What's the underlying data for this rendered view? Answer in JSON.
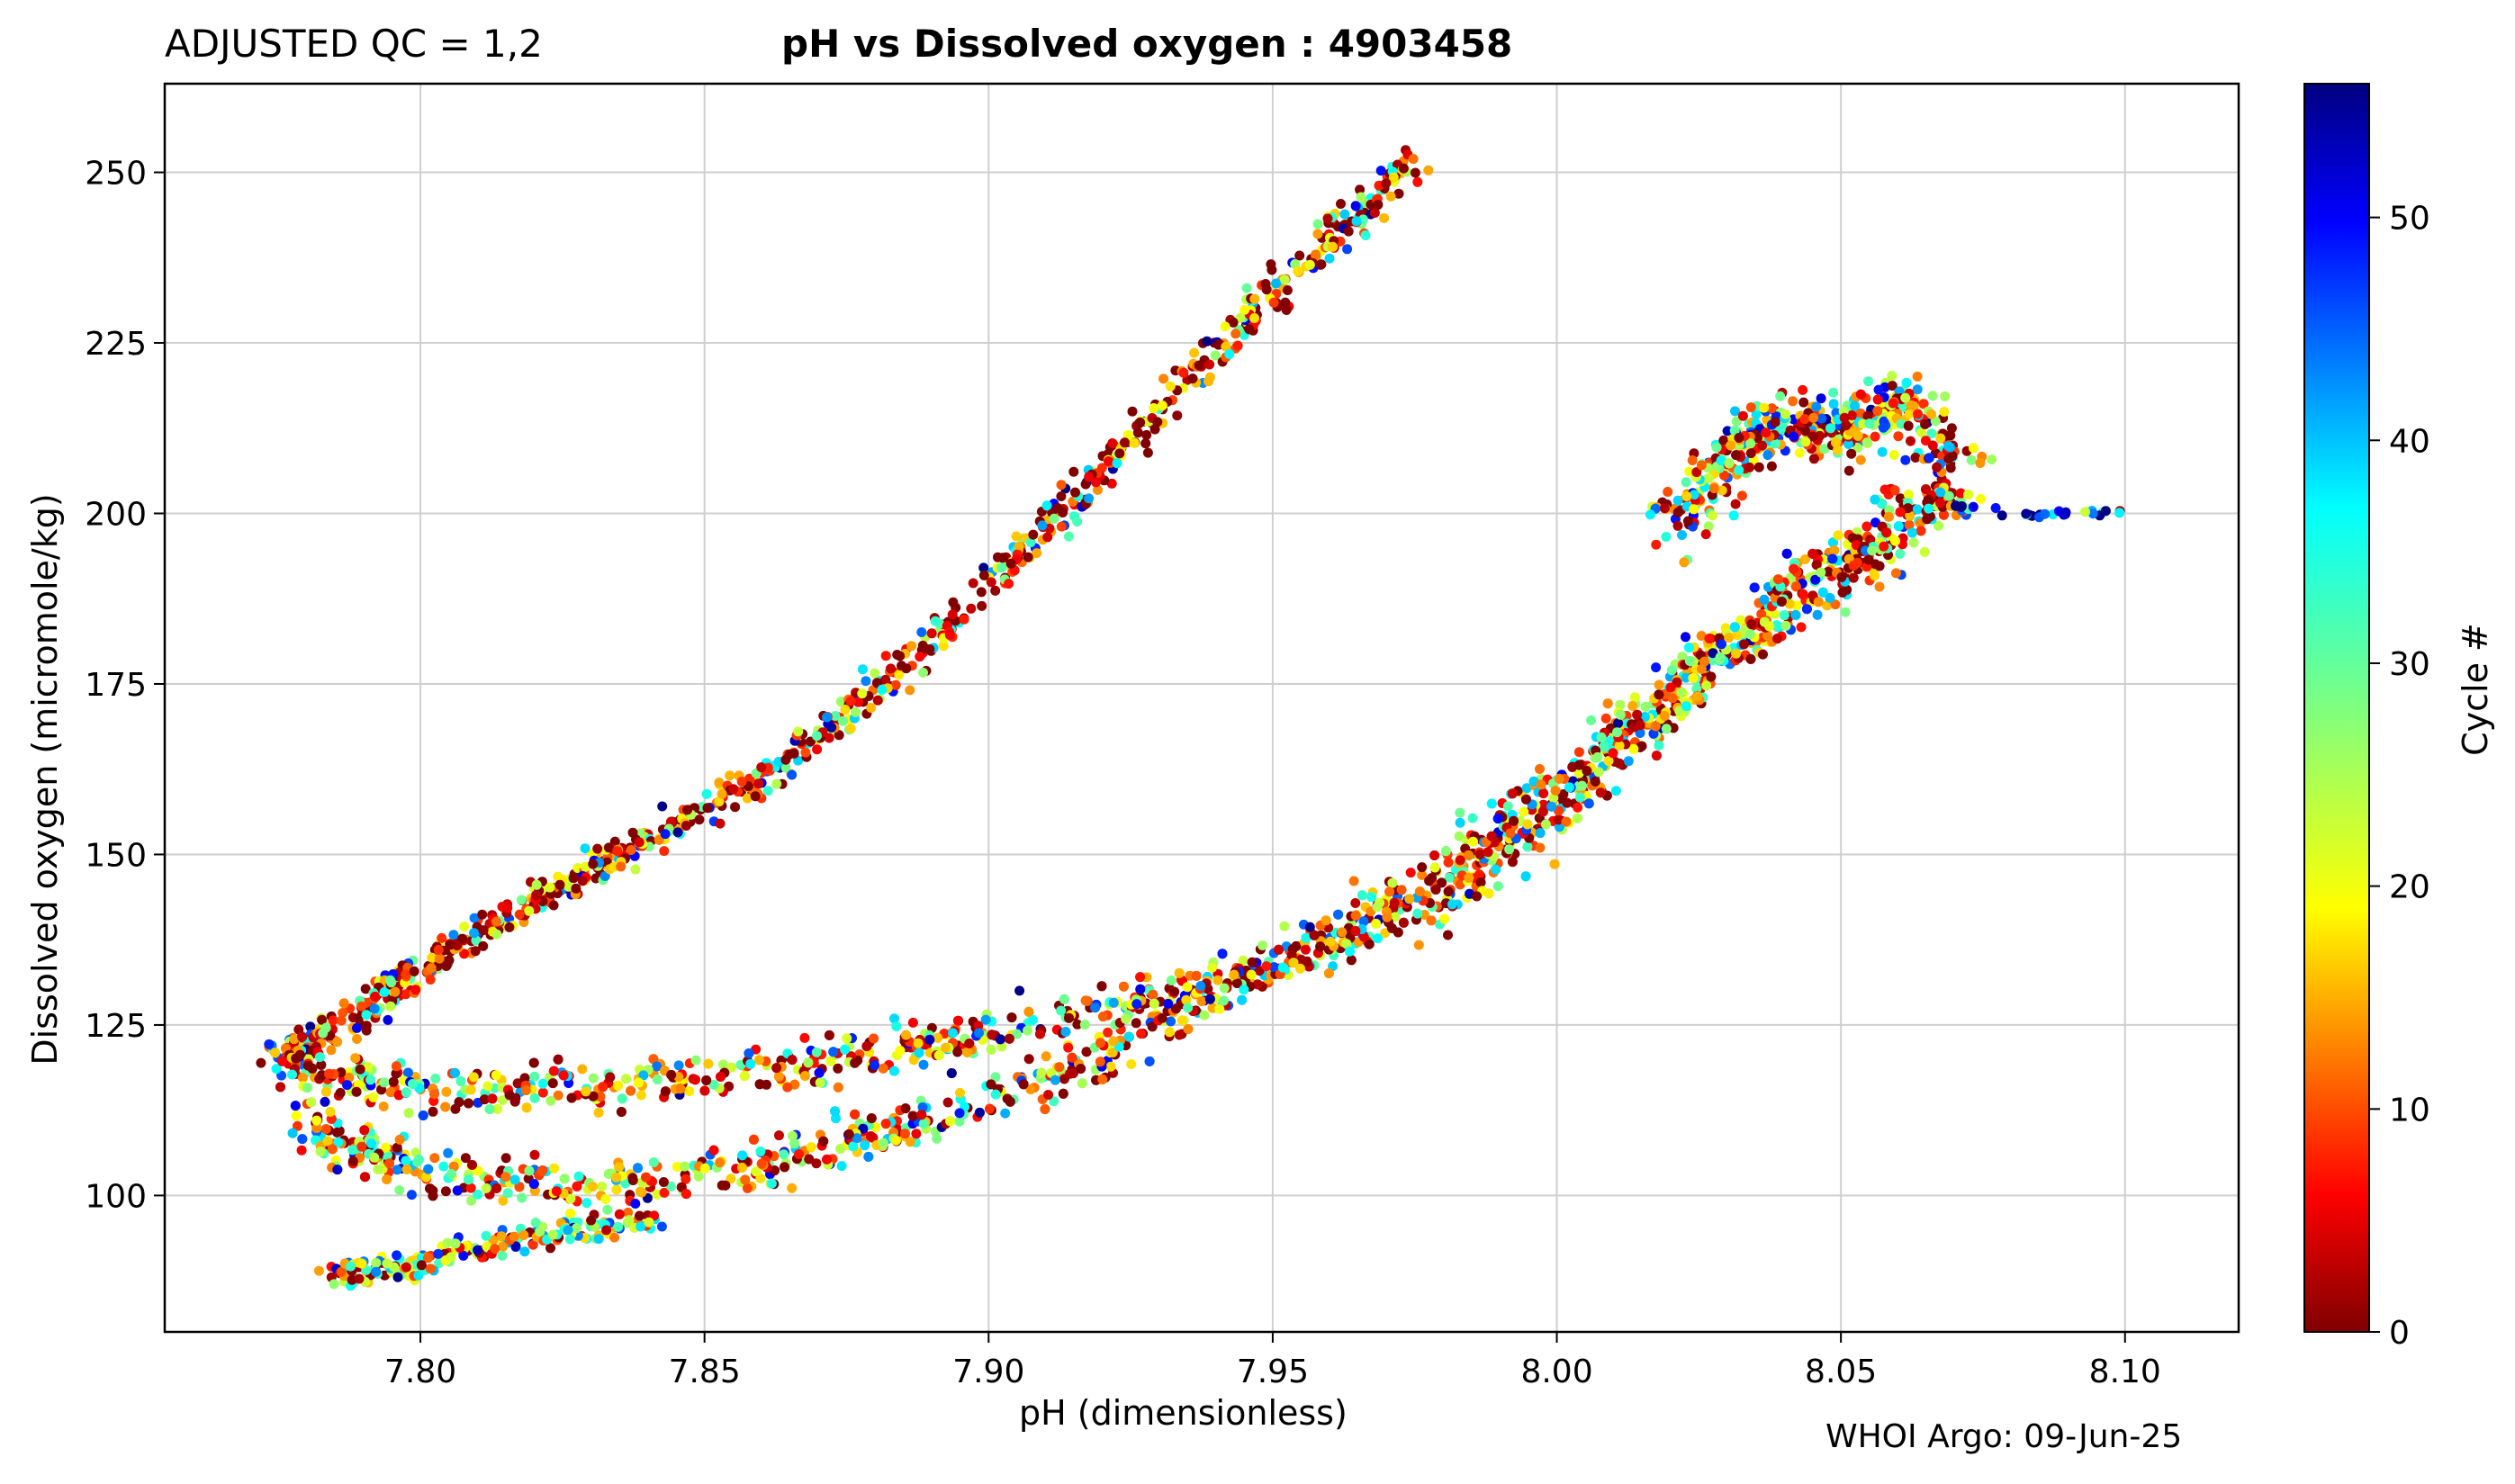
{
  "header": {
    "qc_label": "ADJUSTED QC = 1,2",
    "title": "pH vs Dissolved oxygen : 4903458"
  },
  "footer": {
    "credit": "WHOI Argo: 09-Jun-25"
  },
  "chart_data": {
    "type": "scatter",
    "title": "pH vs Dissolved oxygen : 4903458",
    "xlabel": "pH  (dimensionless)",
    "ylabel": "Dissolved oxygen  (micromole/kg)",
    "xlim": [
      7.755,
      8.12
    ],
    "ylim": [
      80,
      263
    ],
    "xticks": [
      7.8,
      7.85,
      7.9,
      7.95,
      8.0,
      8.05,
      8.1
    ],
    "xtick_labels": [
      "7.80",
      "7.85",
      "7.90",
      "7.95",
      "8.00",
      "8.05",
      "8.10"
    ],
    "yticks": [
      100,
      125,
      150,
      175,
      200,
      225,
      250
    ],
    "ytick_labels": [
      "100",
      "125",
      "150",
      "175",
      "200",
      "225",
      "250"
    ],
    "grid": true,
    "colormap": "jet",
    "colorbar": {
      "label": "Cycle #",
      "range": [
        0,
        56
      ],
      "ticks": [
        0,
        10,
        20,
        30,
        40,
        50
      ],
      "tick_labels": [
        "0",
        "10",
        "20",
        "30",
        "40",
        "50"
      ]
    },
    "series": [
      {
        "x": [
          7.775,
          7.79,
          7.8,
          7.82,
          7.84,
          7.86,
          7.88,
          7.9,
          7.92,
          7.94,
          7.96,
          7.975
        ],
        "y": [
          120,
          127,
          133,
          143,
          152,
          161,
          174,
          189,
          206,
          224,
          240,
          252
        ]
      },
      {
        "x": [
          7.775,
          7.8,
          7.83,
          7.86,
          7.89,
          7.92,
          7.95,
          7.98,
          8.0,
          8.02,
          8.04,
          8.06,
          8.07
        ],
        "y": [
          119,
          115,
          116,
          118,
          122,
          127,
          133,
          143,
          156,
          172,
          188,
          200,
          203
        ]
      },
      {
        "x": [
          7.78,
          7.8,
          7.83,
          7.86,
          7.89,
          7.92,
          7.95,
          7.98,
          8.0,
          8.02,
          8.04,
          8.06
        ],
        "y": [
          110,
          103,
          101,
          104,
          111,
          120,
          134,
          147,
          160,
          174,
          186,
          196
        ]
      },
      {
        "x": [
          7.785,
          7.8,
          7.82,
          7.84
        ],
        "y": [
          88,
          90,
          94,
          97
        ]
      },
      {
        "x": [
          8.02,
          8.03,
          8.04,
          8.05,
          8.06,
          8.07
        ],
        "y": [
          198,
          207,
          214,
          211,
          217,
          208
        ]
      },
      {
        "x": [
          8.07,
          8.08,
          8.09,
          8.1
        ],
        "y": [
          201,
          200,
          200,
          200
        ]
      }
    ]
  }
}
